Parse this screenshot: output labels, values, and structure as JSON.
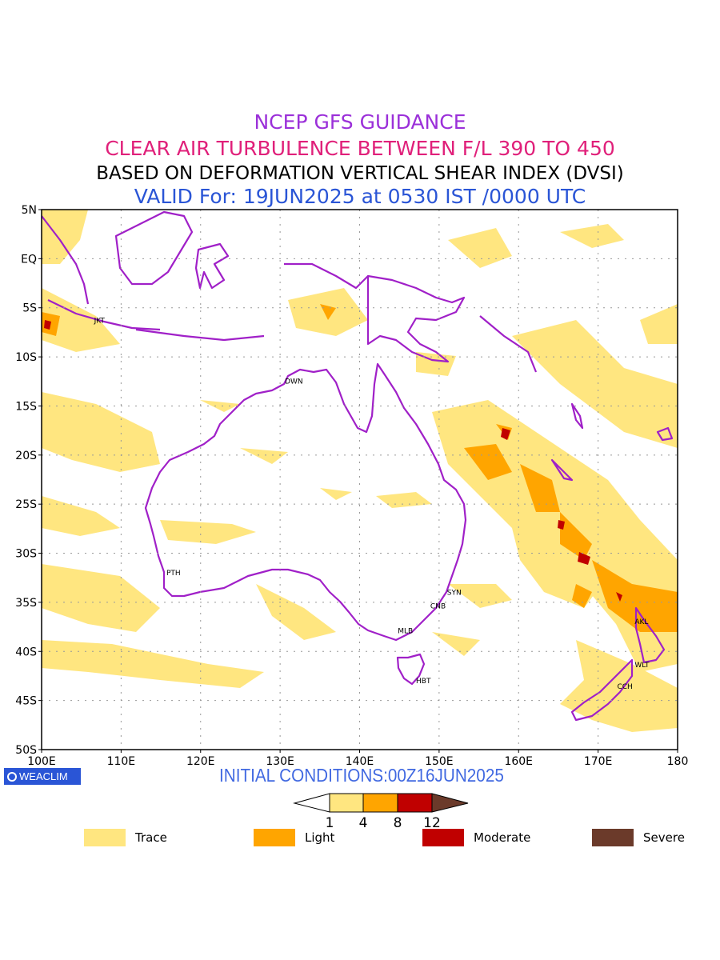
{
  "titles": {
    "line1": "NCEP GFS GUIDANCE",
    "line2": "CLEAR AIR TURBULENCE BETWEEN F/L 390 TO 450",
    "line3": "BASED ON DEFORMATION VERTICAL SHEAR INDEX (DVSI)",
    "line4": "VALID For: 19JUN2025 at 0530 IST /0000 UTC"
  },
  "colors": {
    "title1": "#9b30d9",
    "title2": "#e0207a",
    "title3": "#000000",
    "title4": "#2a55d6",
    "trace": "#ffe680",
    "light": "#ffa500",
    "moderate": "#c00000",
    "severe": "#6b3a2a",
    "coast": "#a020c8",
    "grid": "#999999"
  },
  "axes": {
    "lat_labels": [
      "5N",
      "EQ",
      "5S",
      "10S",
      "15S",
      "20S",
      "25S",
      "30S",
      "35S",
      "40S",
      "45S",
      "50S"
    ],
    "lon_labels": [
      "100E",
      "110E",
      "120E",
      "130E",
      "140E",
      "150E",
      "160E",
      "170E",
      "180"
    ]
  },
  "cities": [
    {
      "code": "JKT",
      "lon": 106.8,
      "lat": -6.2
    },
    {
      "code": "DWN",
      "lon": 130.8,
      "lat": -12.4
    },
    {
      "code": "PTH",
      "lon": 115.9,
      "lat": -31.9
    },
    {
      "code": "SYN",
      "lon": 151.2,
      "lat": -33.9
    },
    {
      "code": "CNB",
      "lon": 149.1,
      "lat": -35.3
    },
    {
      "code": "MLB",
      "lon": 145.0,
      "lat": -37.8
    },
    {
      "code": "HBT",
      "lon": 147.3,
      "lat": -42.9
    },
    {
      "code": "AKL",
      "lon": 174.8,
      "lat": -36.9
    },
    {
      "code": "WLT",
      "lon": 174.8,
      "lat": -41.3
    },
    {
      "code": "CCH",
      "lon": 172.6,
      "lat": -43.5
    }
  ],
  "branding": {
    "logo_text": "WEACLIM",
    "initial_conditions": "INITIAL CONDITIONS:00Z16JUN2025"
  },
  "colorbar": {
    "ticks": [
      "1",
      "4",
      "8",
      "12"
    ]
  },
  "legend": [
    {
      "label": "Trace",
      "color": "#ffe680"
    },
    {
      "label": "Light",
      "color": "#ffa500"
    },
    {
      "label": "Moderate",
      "color": "#c00000"
    },
    {
      "label": "Severe",
      "color": "#6b3a2a"
    }
  ]
}
